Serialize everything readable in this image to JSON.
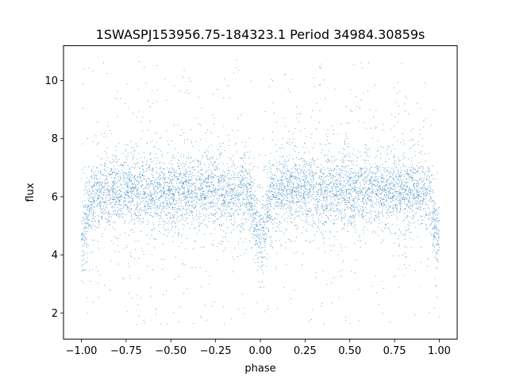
{
  "chart_data": {
    "type": "scatter",
    "title": "1SWASPJ153956.75-184323.1 Period 34984.30859s",
    "xlabel": "phase",
    "ylabel": "flux",
    "xlim": [
      -1.1,
      1.1
    ],
    "ylim": [
      1.1,
      11.2
    ],
    "x_ticks": [
      -1.0,
      -0.75,
      -0.5,
      -0.25,
      0.0,
      0.25,
      0.5,
      0.75,
      1.0
    ],
    "x_tick_labels": [
      "−1.00",
      "−0.75",
      "−0.50",
      "−0.25",
      "0.00",
      "0.25",
      "0.50",
      "0.75",
      "1.00"
    ],
    "y_ticks": [
      2,
      4,
      6,
      8,
      10
    ],
    "y_tick_labels": [
      "2",
      "4",
      "6",
      "8",
      "10"
    ],
    "grid": false,
    "marker_color": "#1f77b4",
    "phase_range": [
      -1.0,
      1.0
    ],
    "flux_range": [
      1.6,
      10.7
    ],
    "baseline_flux": 6.2,
    "eclipse_min_flux": 4.6,
    "eclipse_phases": [
      -1.0,
      0.0,
      1.0
    ]
  }
}
